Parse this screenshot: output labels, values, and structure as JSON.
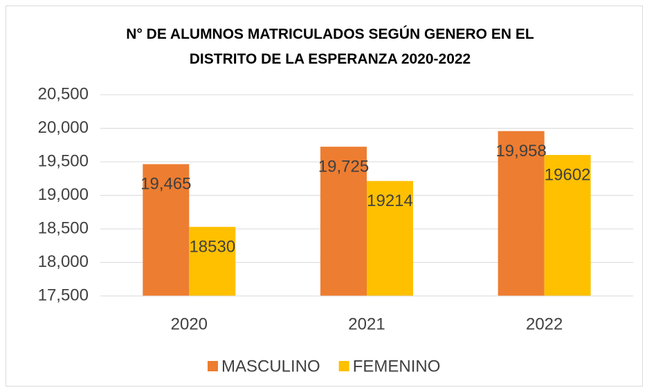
{
  "chart_data": {
    "type": "bar",
    "title": "N° DE ALUMNOS MATRICULADOS SEGÚN GENERO EN EL DISTRITO DE LA ESPERANZA 2020-2022",
    "categories": [
      "2020",
      "2021",
      "2022"
    ],
    "series": [
      {
        "name": "MASCULINO",
        "color": "#ed7d31",
        "values": [
          19465,
          19725,
          19958
        ],
        "value_labels": [
          "19,465",
          "19,725",
          "19,958"
        ]
      },
      {
        "name": "FEMENINO",
        "color": "#ffc000",
        "values": [
          18530,
          19214,
          19602
        ]
      }
    ],
    "ylim": [
      17500,
      20500
    ],
    "yticks": [
      {
        "value": 17500,
        "label": "17,500"
      },
      {
        "value": 18000,
        "label": "18,000"
      },
      {
        "value": 18500,
        "label": "18,500"
      },
      {
        "value": 19000,
        "label": "19,000"
      },
      {
        "value": 19500,
        "label": "19,500"
      },
      {
        "value": 20000,
        "label": "20,000"
      },
      {
        "value": 20500,
        "label": "20,500"
      }
    ],
    "grid": true,
    "legend": "bottom"
  }
}
